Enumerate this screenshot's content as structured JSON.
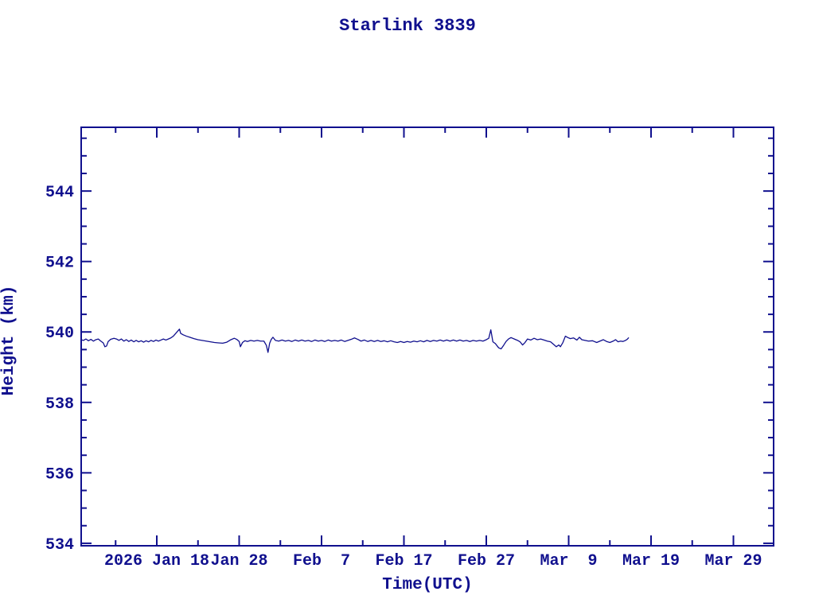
{
  "title": "Starlink 3839",
  "colors": {
    "ink": "#10108E",
    "background": "#FFFFFF"
  },
  "chart_data": {
    "type": "line",
    "title": "Starlink 3839",
    "xlabel": "Time(UTC)",
    "ylabel": "Height (km)",
    "x_unit": "days relative to 2026 Jan 18 (UTC)",
    "xlim": [
      -9.18,
      74.88
    ],
    "ylim": [
      533.93,
      545.81
    ],
    "grid": false,
    "legend": "none",
    "x_major_ticks": [
      {
        "day": 0,
        "label": "2026 Jan 18"
      },
      {
        "day": 10,
        "label": "Jan 28"
      },
      {
        "day": 20,
        "label": "Feb  7"
      },
      {
        "day": 30,
        "label": "Feb 17"
      },
      {
        "day": 40,
        "label": "Feb 27"
      },
      {
        "day": 50,
        "label": "Mar  9"
      },
      {
        "day": 60,
        "label": "Mar 19"
      },
      {
        "day": 70,
        "label": "Mar 29"
      }
    ],
    "x_minor_ticks": [
      -5,
      5,
      15,
      25,
      35,
      45,
      55,
      65,
      75
    ],
    "y_major_ticks": [
      534,
      536,
      538,
      540,
      542,
      544
    ],
    "y_minor_step": 0.5,
    "series": [
      {
        "name": "height_km",
        "points": [
          [
            -9.2,
            539.78
          ],
          [
            -8.9,
            539.76
          ],
          [
            -8.6,
            539.8
          ],
          [
            -8.3,
            539.75
          ],
          [
            -8.0,
            539.79
          ],
          [
            -7.7,
            539.74
          ],
          [
            -7.4,
            539.78
          ],
          [
            -7.1,
            539.8
          ],
          [
            -6.8,
            539.74
          ],
          [
            -6.5,
            539.69
          ],
          [
            -6.3,
            539.58
          ],
          [
            -6.1,
            539.6
          ],
          [
            -5.9,
            539.73
          ],
          [
            -5.6,
            539.79
          ],
          [
            -5.2,
            539.82
          ],
          [
            -4.9,
            539.8
          ],
          [
            -4.6,
            539.76
          ],
          [
            -4.3,
            539.8
          ],
          [
            -4.0,
            539.74
          ],
          [
            -3.7,
            539.78
          ],
          [
            -3.4,
            539.73
          ],
          [
            -3.1,
            539.77
          ],
          [
            -2.8,
            539.72
          ],
          [
            -2.5,
            539.76
          ],
          [
            -2.2,
            539.72
          ],
          [
            -1.9,
            539.75
          ],
          [
            -1.6,
            539.71
          ],
          [
            -1.3,
            539.75
          ],
          [
            -1.0,
            539.72
          ],
          [
            -0.7,
            539.76
          ],
          [
            -0.4,
            539.73
          ],
          [
            -0.1,
            539.77
          ],
          [
            0.2,
            539.74
          ],
          [
            0.5,
            539.77
          ],
          [
            0.8,
            539.8
          ],
          [
            1.1,
            539.77
          ],
          [
            1.4,
            539.8
          ],
          [
            1.7,
            539.83
          ],
          [
            2.0,
            539.88
          ],
          [
            2.3,
            539.96
          ],
          [
            2.6,
            540.04
          ],
          [
            2.75,
            540.08
          ],
          [
            2.9,
            539.96
          ],
          [
            3.2,
            539.92
          ],
          [
            3.6,
            539.88
          ],
          [
            4.0,
            539.85
          ],
          [
            4.5,
            539.81
          ],
          [
            5.0,
            539.78
          ],
          [
            5.5,
            539.76
          ],
          [
            6.0,
            539.74
          ],
          [
            6.5,
            539.72
          ],
          [
            7.0,
            539.7
          ],
          [
            7.5,
            539.69
          ],
          [
            8.0,
            539.68
          ],
          [
            8.5,
            539.71
          ],
          [
            9.0,
            539.78
          ],
          [
            9.4,
            539.82
          ],
          [
            9.7,
            539.79
          ],
          [
            10.0,
            539.73
          ],
          [
            10.15,
            539.58
          ],
          [
            10.4,
            539.7
          ],
          [
            10.7,
            539.75
          ],
          [
            11.0,
            539.73
          ],
          [
            11.4,
            539.76
          ],
          [
            11.8,
            539.74
          ],
          [
            12.2,
            539.76
          ],
          [
            12.6,
            539.74
          ],
          [
            13.0,
            539.74
          ],
          [
            13.3,
            539.62
          ],
          [
            13.5,
            539.42
          ],
          [
            13.7,
            539.68
          ],
          [
            13.9,
            539.79
          ],
          [
            14.1,
            539.85
          ],
          [
            14.4,
            539.76
          ],
          [
            14.8,
            539.74
          ],
          [
            15.2,
            539.77
          ],
          [
            15.6,
            539.74
          ],
          [
            16.0,
            539.76
          ],
          [
            16.4,
            539.73
          ],
          [
            16.8,
            539.77
          ],
          [
            17.2,
            539.74
          ],
          [
            17.6,
            539.77
          ],
          [
            18.0,
            539.74
          ],
          [
            18.4,
            539.76
          ],
          [
            18.8,
            539.73
          ],
          [
            19.2,
            539.77
          ],
          [
            19.6,
            539.74
          ],
          [
            20.0,
            539.76
          ],
          [
            20.4,
            539.73
          ],
          [
            20.8,
            539.77
          ],
          [
            21.2,
            539.74
          ],
          [
            21.6,
            539.76
          ],
          [
            22.0,
            539.74
          ],
          [
            22.4,
            539.77
          ],
          [
            22.8,
            539.73
          ],
          [
            23.2,
            539.76
          ],
          [
            23.6,
            539.79
          ],
          [
            24.0,
            539.83
          ],
          [
            24.4,
            539.79
          ],
          [
            24.8,
            539.74
          ],
          [
            25.2,
            539.77
          ],
          [
            25.6,
            539.73
          ],
          [
            26.0,
            539.76
          ],
          [
            26.4,
            539.73
          ],
          [
            26.8,
            539.76
          ],
          [
            27.2,
            539.73
          ],
          [
            27.6,
            539.75
          ],
          [
            28.0,
            539.72
          ],
          [
            28.4,
            539.75
          ],
          [
            28.8,
            539.72
          ],
          [
            29.2,
            539.7
          ],
          [
            29.6,
            539.73
          ],
          [
            30.0,
            539.7
          ],
          [
            30.4,
            539.73
          ],
          [
            30.8,
            539.71
          ],
          [
            31.2,
            539.74
          ],
          [
            31.6,
            539.72
          ],
          [
            32.0,
            539.75
          ],
          [
            32.4,
            539.72
          ],
          [
            32.8,
            539.76
          ],
          [
            33.2,
            539.73
          ],
          [
            33.6,
            539.76
          ],
          [
            34.0,
            539.74
          ],
          [
            34.4,
            539.77
          ],
          [
            34.8,
            539.74
          ],
          [
            35.2,
            539.77
          ],
          [
            35.6,
            539.74
          ],
          [
            36.0,
            539.77
          ],
          [
            36.4,
            539.74
          ],
          [
            36.8,
            539.77
          ],
          [
            37.2,
            539.74
          ],
          [
            37.6,
            539.76
          ],
          [
            38.0,
            539.73
          ],
          [
            38.4,
            539.76
          ],
          [
            38.8,
            539.74
          ],
          [
            39.2,
            539.76
          ],
          [
            39.6,
            539.74
          ],
          [
            40.0,
            539.78
          ],
          [
            40.3,
            539.82
          ],
          [
            40.55,
            540.06
          ],
          [
            40.8,
            539.72
          ],
          [
            41.1,
            539.67
          ],
          [
            41.5,
            539.55
          ],
          [
            41.8,
            539.52
          ],
          [
            42.1,
            539.62
          ],
          [
            42.4,
            539.73
          ],
          [
            42.7,
            539.8
          ],
          [
            43.0,
            539.84
          ],
          [
            43.4,
            539.8
          ],
          [
            43.8,
            539.76
          ],
          [
            44.1,
            539.72
          ],
          [
            44.4,
            539.63
          ],
          [
            44.7,
            539.7
          ],
          [
            45.0,
            539.8
          ],
          [
            45.4,
            539.77
          ],
          [
            45.8,
            539.82
          ],
          [
            46.2,
            539.78
          ],
          [
            46.6,
            539.8
          ],
          [
            47.0,
            539.77
          ],
          [
            47.4,
            539.74
          ],
          [
            47.8,
            539.72
          ],
          [
            48.2,
            539.64
          ],
          [
            48.5,
            539.58
          ],
          [
            48.8,
            539.63
          ],
          [
            49.0,
            539.58
          ],
          [
            49.3,
            539.7
          ],
          [
            49.6,
            539.88
          ],
          [
            49.9,
            539.84
          ],
          [
            50.2,
            539.81
          ],
          [
            50.6,
            539.83
          ],
          [
            51.0,
            539.77
          ],
          [
            51.3,
            539.85
          ],
          [
            51.6,
            539.78
          ],
          [
            52.0,
            539.76
          ],
          [
            52.4,
            539.74
          ],
          [
            52.9,
            539.75
          ],
          [
            53.4,
            539.7
          ],
          [
            53.8,
            539.74
          ],
          [
            54.2,
            539.78
          ],
          [
            54.6,
            539.73
          ],
          [
            55.0,
            539.7
          ],
          [
            55.4,
            539.74
          ],
          [
            55.7,
            539.78
          ],
          [
            56.0,
            539.72
          ],
          [
            56.3,
            539.74
          ],
          [
            56.6,
            539.73
          ],
          [
            56.9,
            539.76
          ],
          [
            57.1,
            539.79
          ],
          [
            57.3,
            539.84
          ]
        ]
      }
    ]
  }
}
